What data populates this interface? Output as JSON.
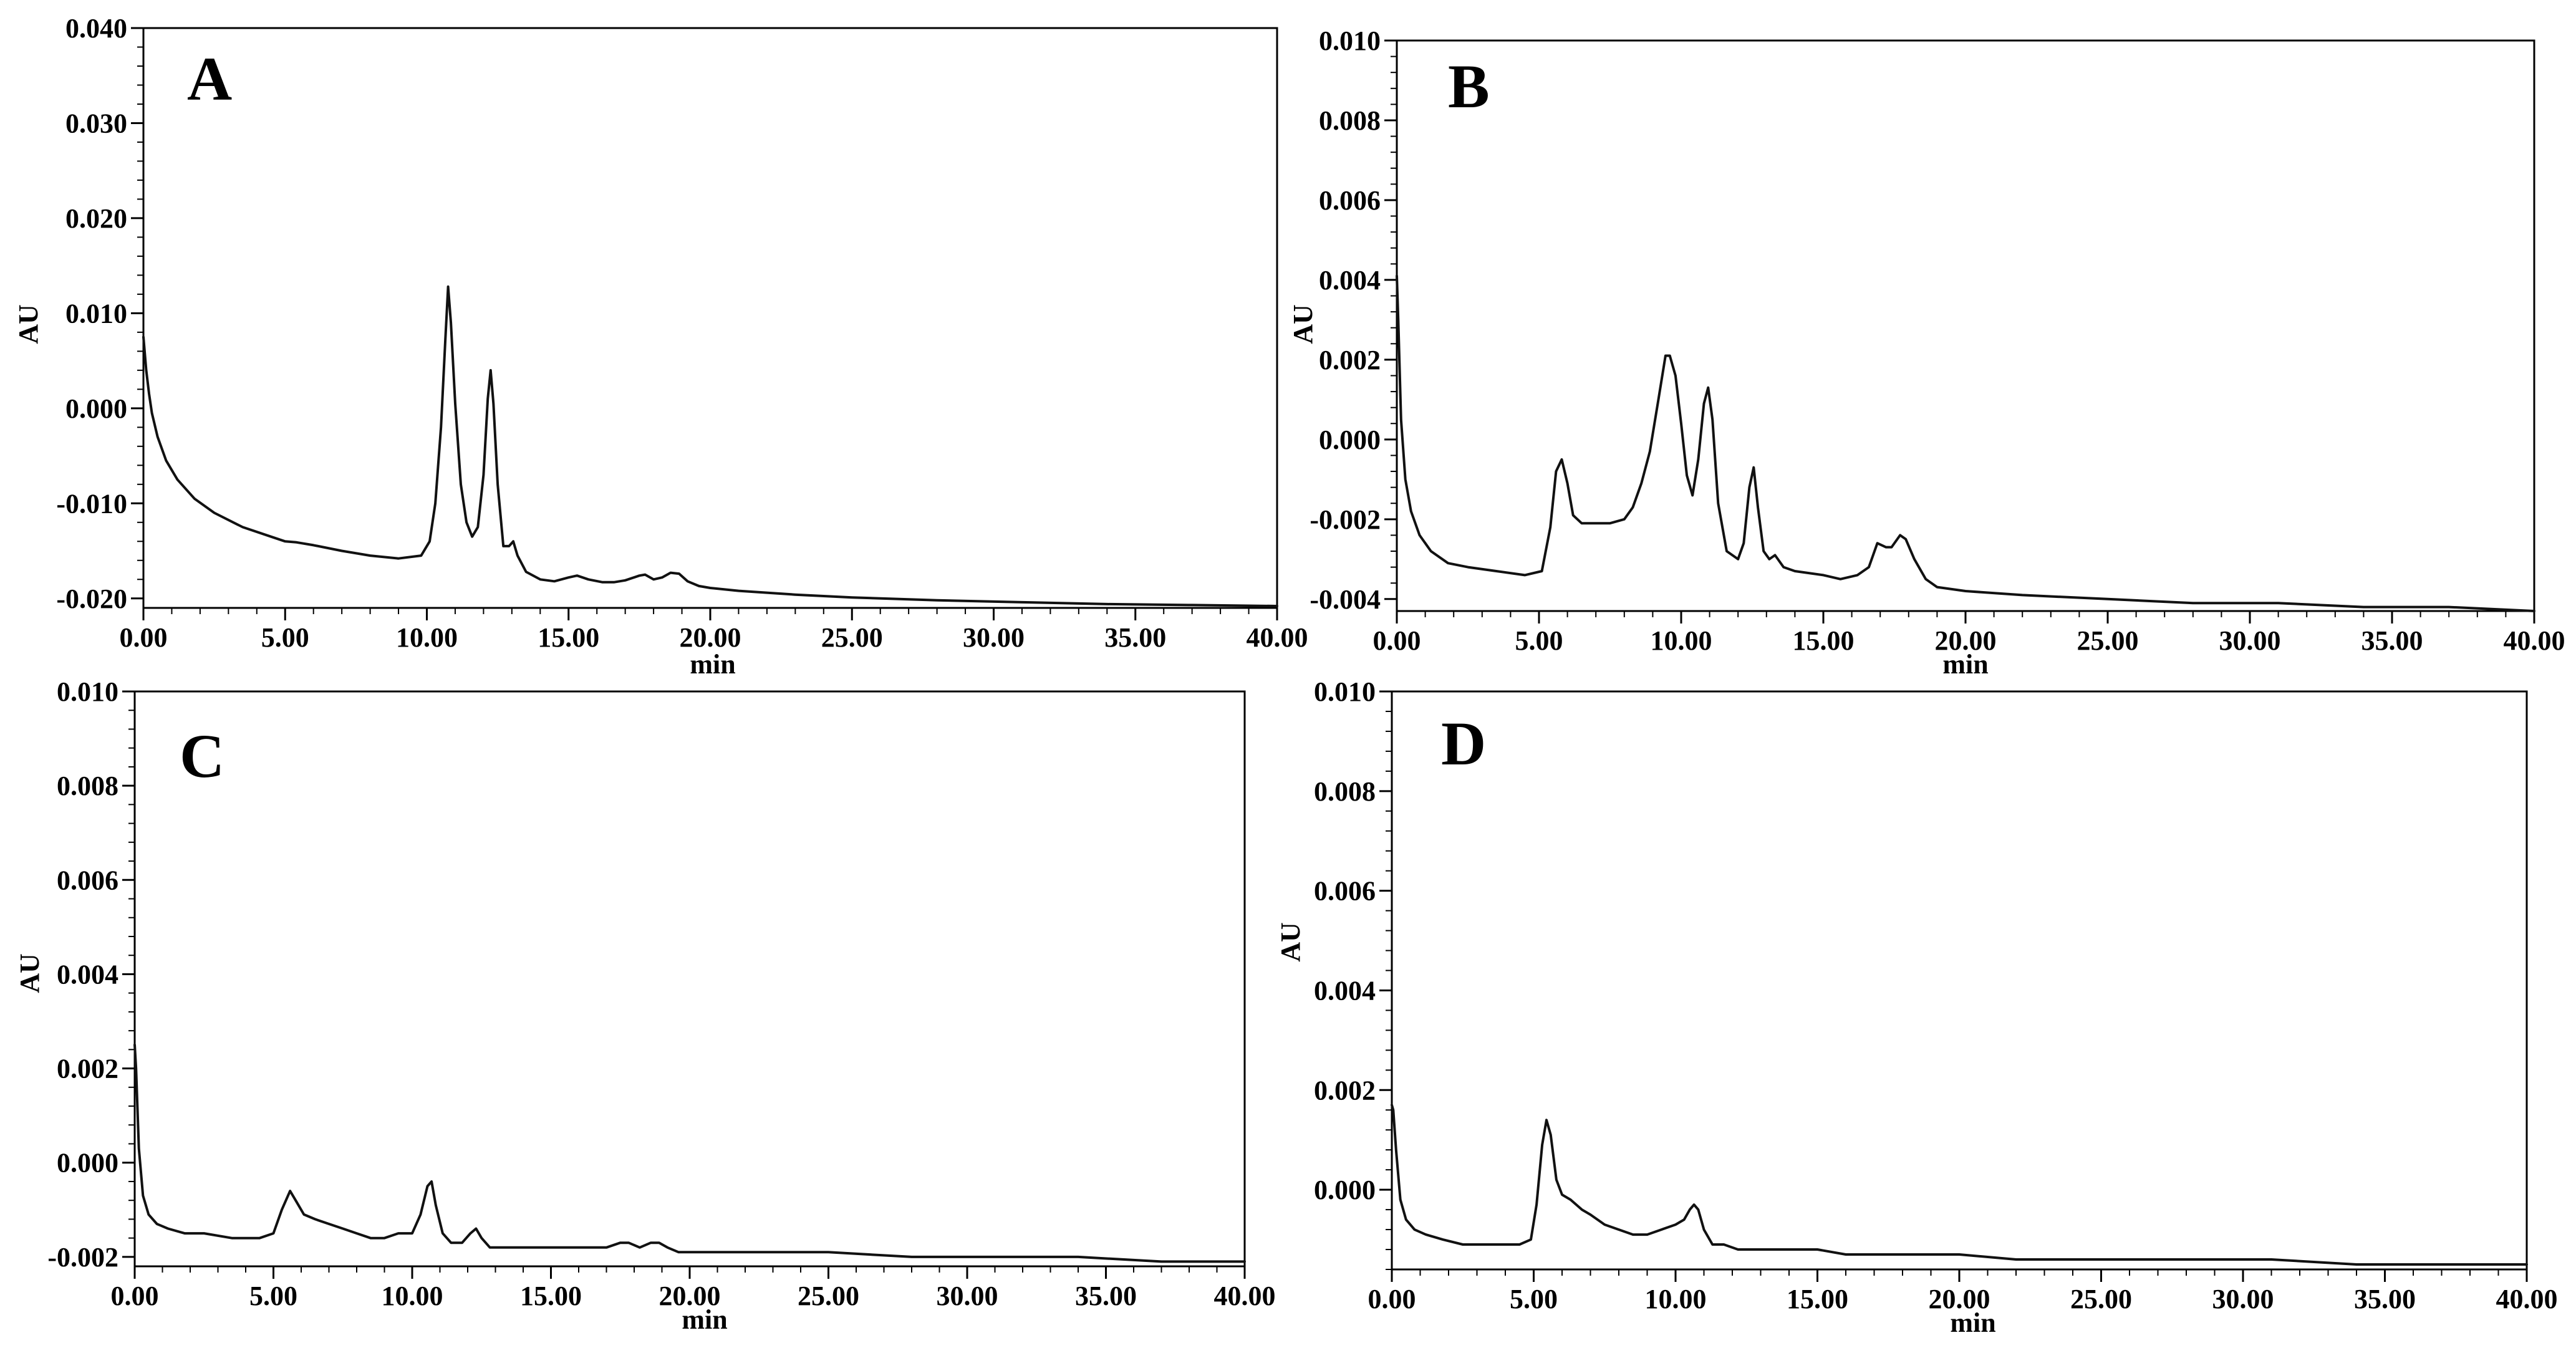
{
  "chart_data": [
    {
      "type": "line",
      "panel_label": "A",
      "xlabel": "min",
      "ylabel": "AU",
      "xlim": [
        0,
        40
      ],
      "ylim": [
        -0.021,
        0.04
      ],
      "xticks": [
        "0.00",
        "5.00",
        "10.00",
        "15.00",
        "20.00",
        "25.00",
        "30.00",
        "35.00",
        "40.00"
      ],
      "yticks": [
        "0.040",
        "0.030",
        "0.020",
        "0.010",
        "0.000",
        "-0.010",
        "-0.020"
      ],
      "ytick_values": [
        0.04,
        0.03,
        0.02,
        0.01,
        0.0,
        -0.01,
        -0.02
      ],
      "x": [
        0,
        0.1,
        0.2,
        0.3,
        0.5,
        0.8,
        1.2,
        1.8,
        2.5,
        3.5,
        4.5,
        5.0,
        5.4,
        6.0,
        7.0,
        8.0,
        9.0,
        9.8,
        10.1,
        10.3,
        10.5,
        10.65,
        10.75,
        10.85,
        11.0,
        11.2,
        11.4,
        11.6,
        11.8,
        12.0,
        12.15,
        12.25,
        12.35,
        12.5,
        12.7,
        12.9,
        13.05,
        13.2,
        13.5,
        14.0,
        14.5,
        15.0,
        15.3,
        15.7,
        16.2,
        16.6,
        17.0,
        17.5,
        17.7,
        18.0,
        18.3,
        18.6,
        18.9,
        19.2,
        19.6,
        20.0,
        21.0,
        23.0,
        25.0,
        28.0,
        31.0,
        34.0,
        37.0,
        40.0
      ],
      "y": [
        0.0075,
        0.004,
        0.0015,
        -0.0005,
        -0.003,
        -0.0055,
        -0.0075,
        -0.0095,
        -0.011,
        -0.0125,
        -0.0135,
        -0.014,
        -0.0141,
        -0.0144,
        -0.015,
        -0.0155,
        -0.0158,
        -0.0155,
        -0.014,
        -0.01,
        -0.002,
        0.007,
        0.0128,
        0.009,
        0.0005,
        -0.008,
        -0.012,
        -0.0135,
        -0.0125,
        -0.007,
        0.001,
        0.004,
        0.0005,
        -0.008,
        -0.0145,
        -0.0145,
        -0.014,
        -0.0155,
        -0.0172,
        -0.018,
        -0.0182,
        -0.0178,
        -0.0176,
        -0.018,
        -0.0183,
        -0.0183,
        -0.0181,
        -0.0176,
        -0.0175,
        -0.018,
        -0.0178,
        -0.0173,
        -0.0174,
        -0.0182,
        -0.0187,
        -0.0189,
        -0.0192,
        -0.0196,
        -0.0199,
        -0.0202,
        -0.0204,
        -0.0206,
        -0.0207,
        -0.0208
      ]
    },
    {
      "type": "line",
      "panel_label": "B",
      "xlabel": "min",
      "ylabel": "AU",
      "xlim": [
        0,
        40
      ],
      "ylim": [
        -0.0043,
        0.01
      ],
      "xticks": [
        "0.00",
        "5.00",
        "10.00",
        "15.00",
        "20.00",
        "25.00",
        "30.00",
        "35.00",
        "40.00"
      ],
      "yticks": [
        "0.010",
        "0.008",
        "0.006",
        "0.004",
        "0.002",
        "0.000",
        "-0.002",
        "-0.004"
      ],
      "ytick_values": [
        0.01,
        0.008,
        0.006,
        0.004,
        0.002,
        0.0,
        -0.002,
        -0.004
      ],
      "x": [
        0,
        0.05,
        0.15,
        0.3,
        0.5,
        0.8,
        1.2,
        1.8,
        2.5,
        3.5,
        4.5,
        5.1,
        5.4,
        5.6,
        5.8,
        6.0,
        6.2,
        6.5,
        7.0,
        7.5,
        8.0,
        8.3,
        8.6,
        8.9,
        9.2,
        9.45,
        9.6,
        9.8,
        10.0,
        10.2,
        10.4,
        10.6,
        10.8,
        10.95,
        11.1,
        11.3,
        11.6,
        12.0,
        12.2,
        12.4,
        12.55,
        12.7,
        12.9,
        13.1,
        13.3,
        13.6,
        14.0,
        15.0,
        15.6,
        16.2,
        16.6,
        16.9,
        17.2,
        17.4,
        17.7,
        17.9,
        18.2,
        18.6,
        19.0,
        20.0,
        22.0,
        25.0,
        28.0,
        31.0,
        34.0,
        37.0,
        40.0
      ],
      "y": [
        0.0041,
        0.003,
        0.0005,
        -0.001,
        -0.0018,
        -0.0024,
        -0.0028,
        -0.0031,
        -0.0032,
        -0.0033,
        -0.0034,
        -0.0033,
        -0.0022,
        -0.0008,
        -0.0005,
        -0.0011,
        -0.0019,
        -0.0021,
        -0.0021,
        -0.0021,
        -0.002,
        -0.0017,
        -0.0011,
        -0.0003,
        0.001,
        0.0021,
        0.0021,
        0.0016,
        0.0004,
        -0.0009,
        -0.0014,
        -0.0005,
        0.0009,
        0.0013,
        0.0005,
        -0.0016,
        -0.0028,
        -0.003,
        -0.0026,
        -0.0012,
        -0.0007,
        -0.0017,
        -0.0028,
        -0.003,
        -0.0029,
        -0.0032,
        -0.0033,
        -0.0034,
        -0.0035,
        -0.0034,
        -0.0032,
        -0.0026,
        -0.0027,
        -0.0027,
        -0.0024,
        -0.0025,
        -0.003,
        -0.0035,
        -0.0037,
        -0.0038,
        -0.0039,
        -0.004,
        -0.0041,
        -0.0041,
        -0.0042,
        -0.0042,
        -0.0043
      ]
    },
    {
      "type": "line",
      "panel_label": "C",
      "xlabel": "min",
      "ylabel": "AU",
      "xlim": [
        0,
        40
      ],
      "ylim": [
        -0.0022,
        0.01
      ],
      "xticks": [
        "0.00",
        "5.00",
        "10.00",
        "15.00",
        "20.00",
        "25.00",
        "30.00",
        "35.00",
        "40.00"
      ],
      "yticks": [
        "0.010",
        "0.008",
        "0.006",
        "0.004",
        "0.002",
        "0.000",
        "-0.002"
      ],
      "ytick_values": [
        0.01,
        0.008,
        0.006,
        0.004,
        0.002,
        0.0,
        -0.002
      ],
      "x": [
        0,
        0.05,
        0.15,
        0.3,
        0.5,
        0.8,
        1.2,
        1.8,
        2.5,
        3.5,
        4.5,
        5.0,
        5.3,
        5.6,
        5.8,
        6.1,
        6.5,
        7.0,
        7.5,
        8.0,
        8.5,
        9.0,
        9.5,
        10.0,
        10.3,
        10.55,
        10.7,
        10.85,
        11.1,
        11.4,
        11.8,
        12.1,
        12.3,
        12.5,
        12.8,
        13.2,
        14.0,
        15.0,
        16.0,
        17.0,
        17.5,
        17.8,
        18.2,
        18.6,
        18.9,
        19.2,
        19.6,
        20.0,
        22.0,
        25.0,
        28.0,
        31.0,
        34.0,
        37.0,
        40.0
      ],
      "y": [
        0.0025,
        0.002,
        0.0003,
        -0.0007,
        -0.0011,
        -0.0013,
        -0.0014,
        -0.0015,
        -0.0015,
        -0.0016,
        -0.0016,
        -0.0015,
        -0.001,
        -0.0006,
        -0.0008,
        -0.0011,
        -0.0012,
        -0.0013,
        -0.0014,
        -0.0015,
        -0.0016,
        -0.0016,
        -0.0015,
        -0.0015,
        -0.0011,
        -0.0005,
        -0.0004,
        -0.0009,
        -0.0015,
        -0.0017,
        -0.0017,
        -0.0015,
        -0.0014,
        -0.0016,
        -0.0018,
        -0.0018,
        -0.0018,
        -0.0018,
        -0.0018,
        -0.0018,
        -0.0017,
        -0.0017,
        -0.0018,
        -0.0017,
        -0.0017,
        -0.0018,
        -0.0019,
        -0.0019,
        -0.0019,
        -0.0019,
        -0.002,
        -0.002,
        -0.002,
        -0.0021,
        -0.0021
      ]
    },
    {
      "type": "line",
      "panel_label": "D",
      "xlabel": "min",
      "ylabel": "AU",
      "xlim": [
        0,
        40
      ],
      "ylim": [
        -0.0016,
        0.01
      ],
      "xticks": [
        "0.00",
        "5.00",
        "10.00",
        "15.00",
        "20.00",
        "25.00",
        "30.00",
        "35.00",
        "40.00"
      ],
      "yticks": [
        "0.010",
        "0.008",
        "0.006",
        "0.004",
        "0.002",
        "0.000"
      ],
      "ytick_values": [
        0.01,
        0.008,
        0.006,
        0.004,
        0.002,
        0.0
      ],
      "x": [
        0,
        0.05,
        0.15,
        0.3,
        0.5,
        0.8,
        1.2,
        1.8,
        2.5,
        3.5,
        4.5,
        4.9,
        5.1,
        5.3,
        5.45,
        5.6,
        5.8,
        6.0,
        6.3,
        6.7,
        7.0,
        7.5,
        8.0,
        8.5,
        9.0,
        9.5,
        10.0,
        10.3,
        10.5,
        10.65,
        10.8,
        11.0,
        11.3,
        11.7,
        12.2,
        13.0,
        14.0,
        15.0,
        16.0,
        18.0,
        20.0,
        22.0,
        25.0,
        28.0,
        31.0,
        34.0,
        37.0,
        40.0
      ],
      "y": [
        0.0017,
        0.0016,
        0.0008,
        -0.0002,
        -0.0006,
        -0.0008,
        -0.0009,
        -0.001,
        -0.0011,
        -0.0011,
        -0.0011,
        -0.001,
        -0.0003,
        0.0009,
        0.0014,
        0.0011,
        0.0002,
        -0.0001,
        -0.0002,
        -0.0004,
        -0.0005,
        -0.0007,
        -0.0008,
        -0.0009,
        -0.0009,
        -0.0008,
        -0.0007,
        -0.0006,
        -0.0004,
        -0.0003,
        -0.0004,
        -0.0008,
        -0.0011,
        -0.0011,
        -0.0012,
        -0.0012,
        -0.0012,
        -0.0012,
        -0.0013,
        -0.0013,
        -0.0013,
        -0.0014,
        -0.0014,
        -0.0014,
        -0.0014,
        -0.0015,
        -0.0015,
        -0.0015
      ]
    }
  ]
}
